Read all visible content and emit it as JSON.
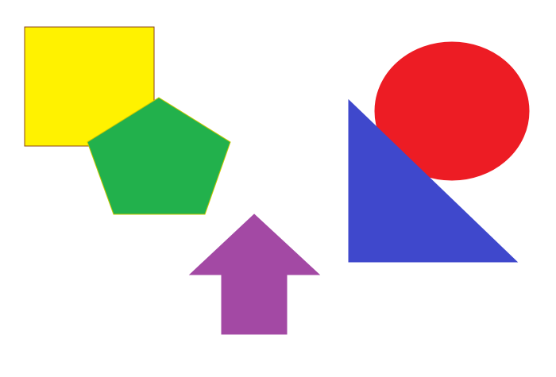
{
  "background_color": "#FFFFFF",
  "shapes": [
    {
      "kind": "square",
      "fill": "#FFF200",
      "stroke": "#8B4513"
    },
    {
      "kind": "pentagon",
      "fill": "#22B14C",
      "stroke": "#C8C800"
    },
    {
      "kind": "ellipse",
      "fill": "#ED1C24",
      "stroke": "#ED1C24"
    },
    {
      "kind": "right-triangle",
      "fill": "#3F48CC",
      "stroke": "#3F48CC"
    },
    {
      "kind": "up-arrow",
      "fill": "#A349A4",
      "stroke": "#A349A4"
    }
  ]
}
